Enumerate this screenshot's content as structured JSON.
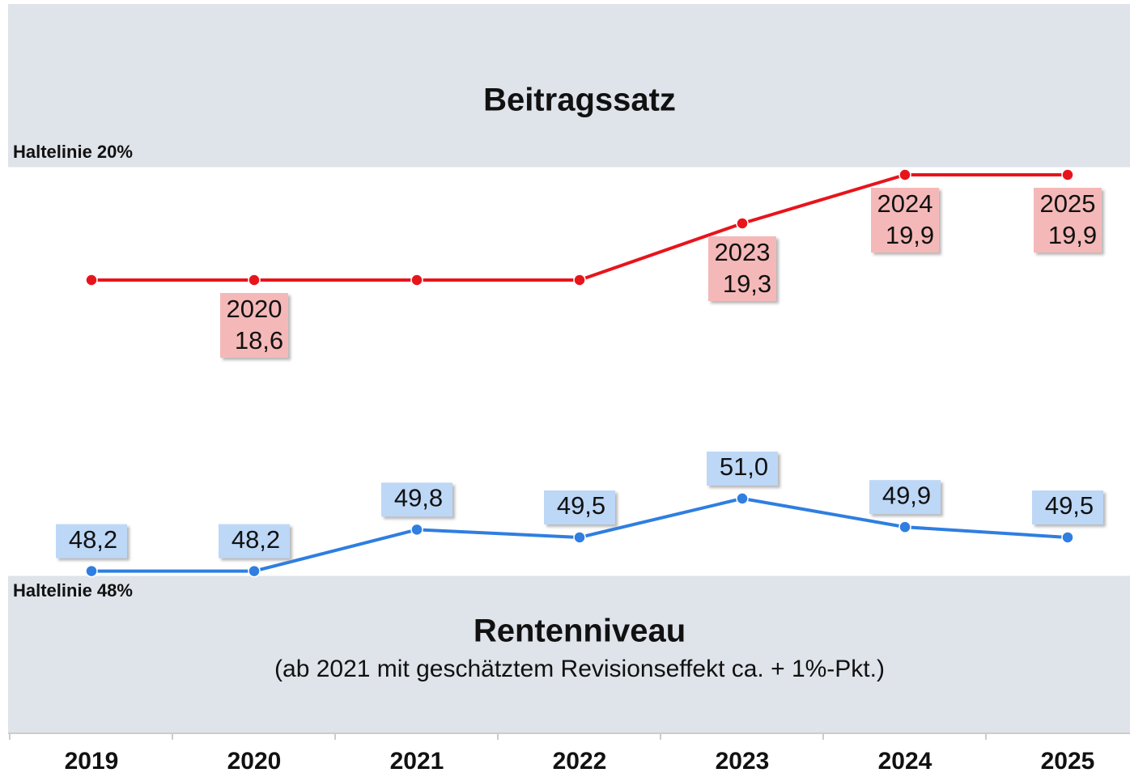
{
  "chart_data": {
    "type": "line",
    "subtitle": "(ab 2021 mit geschätztem Revisionseffekt ca. + 1%-Pkt.)",
    "categories": [
      "2019",
      "2020",
      "2021",
      "2022",
      "2023",
      "2024",
      "2025"
    ],
    "series": [
      {
        "name": "Beitragssatz",
        "color": "#e8141b",
        "axis": "y",
        "values": [
          18.6,
          18.6,
          18.6,
          18.6,
          19.3,
          19.9,
          19.9
        ],
        "value_labels": [
          null,
          "18,6",
          null,
          null,
          "19,3",
          "19,9",
          "19,9"
        ]
      },
      {
        "name": "Rentenniveau",
        "color": "#2f7ee0",
        "axis": "y2",
        "values": [
          48.2,
          48.2,
          49.8,
          49.5,
          51.0,
          49.9,
          49.5
        ],
        "value_labels": [
          "48,2",
          "48,2",
          "49,8",
          "49,5",
          "51,0",
          "49,9",
          "49,5"
        ]
      }
    ],
    "ylim": [
      14.94,
      20
    ],
    "yticks": [
      {
        "value": 20,
        "label": "Haltelinie 20%"
      }
    ],
    "y2lim": [
      48,
      63.8
    ],
    "y2ticks": [
      {
        "value": 48,
        "label": "Haltelinie 48%"
      }
    ]
  }
}
